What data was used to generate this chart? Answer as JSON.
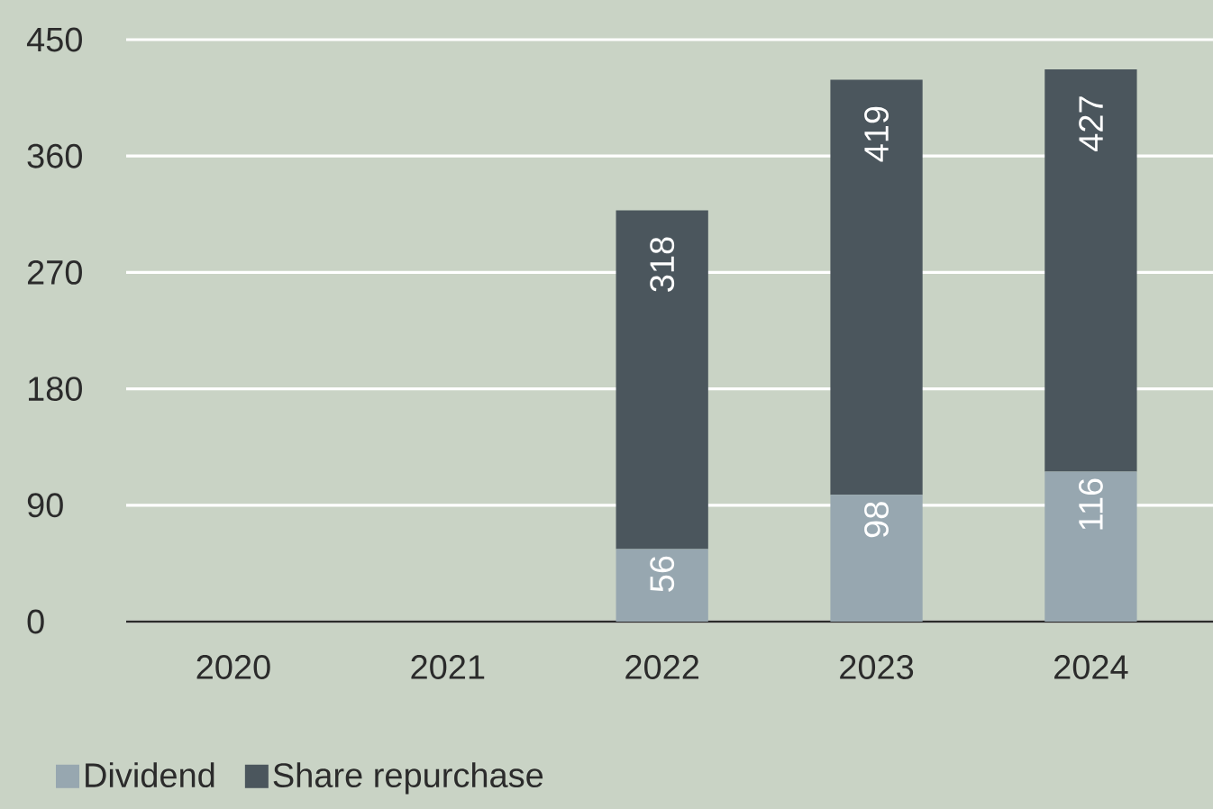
{
  "chart_data": {
    "type": "bar",
    "stacked": true,
    "categories": [
      "2020",
      "2021",
      "2022",
      "2023",
      "2024"
    ],
    "series": [
      {
        "name": "Dividend",
        "color": "#97a7b0",
        "values": [
          null,
          null,
          56,
          98,
          116
        ],
        "value_labels": [
          null,
          null,
          "56",
          "98",
          "116"
        ]
      },
      {
        "name": "Share repurchase",
        "color": "#4b565d",
        "values": [
          null,
          null,
          262,
          321,
          311
        ]
      }
    ],
    "totals": [
      null,
      null,
      "318",
      "419",
      "427"
    ],
    "ylim": [
      0,
      450
    ],
    "yticks": [
      0,
      90,
      180,
      270,
      360,
      450
    ],
    "grid": "y",
    "legend": "bottom left"
  }
}
